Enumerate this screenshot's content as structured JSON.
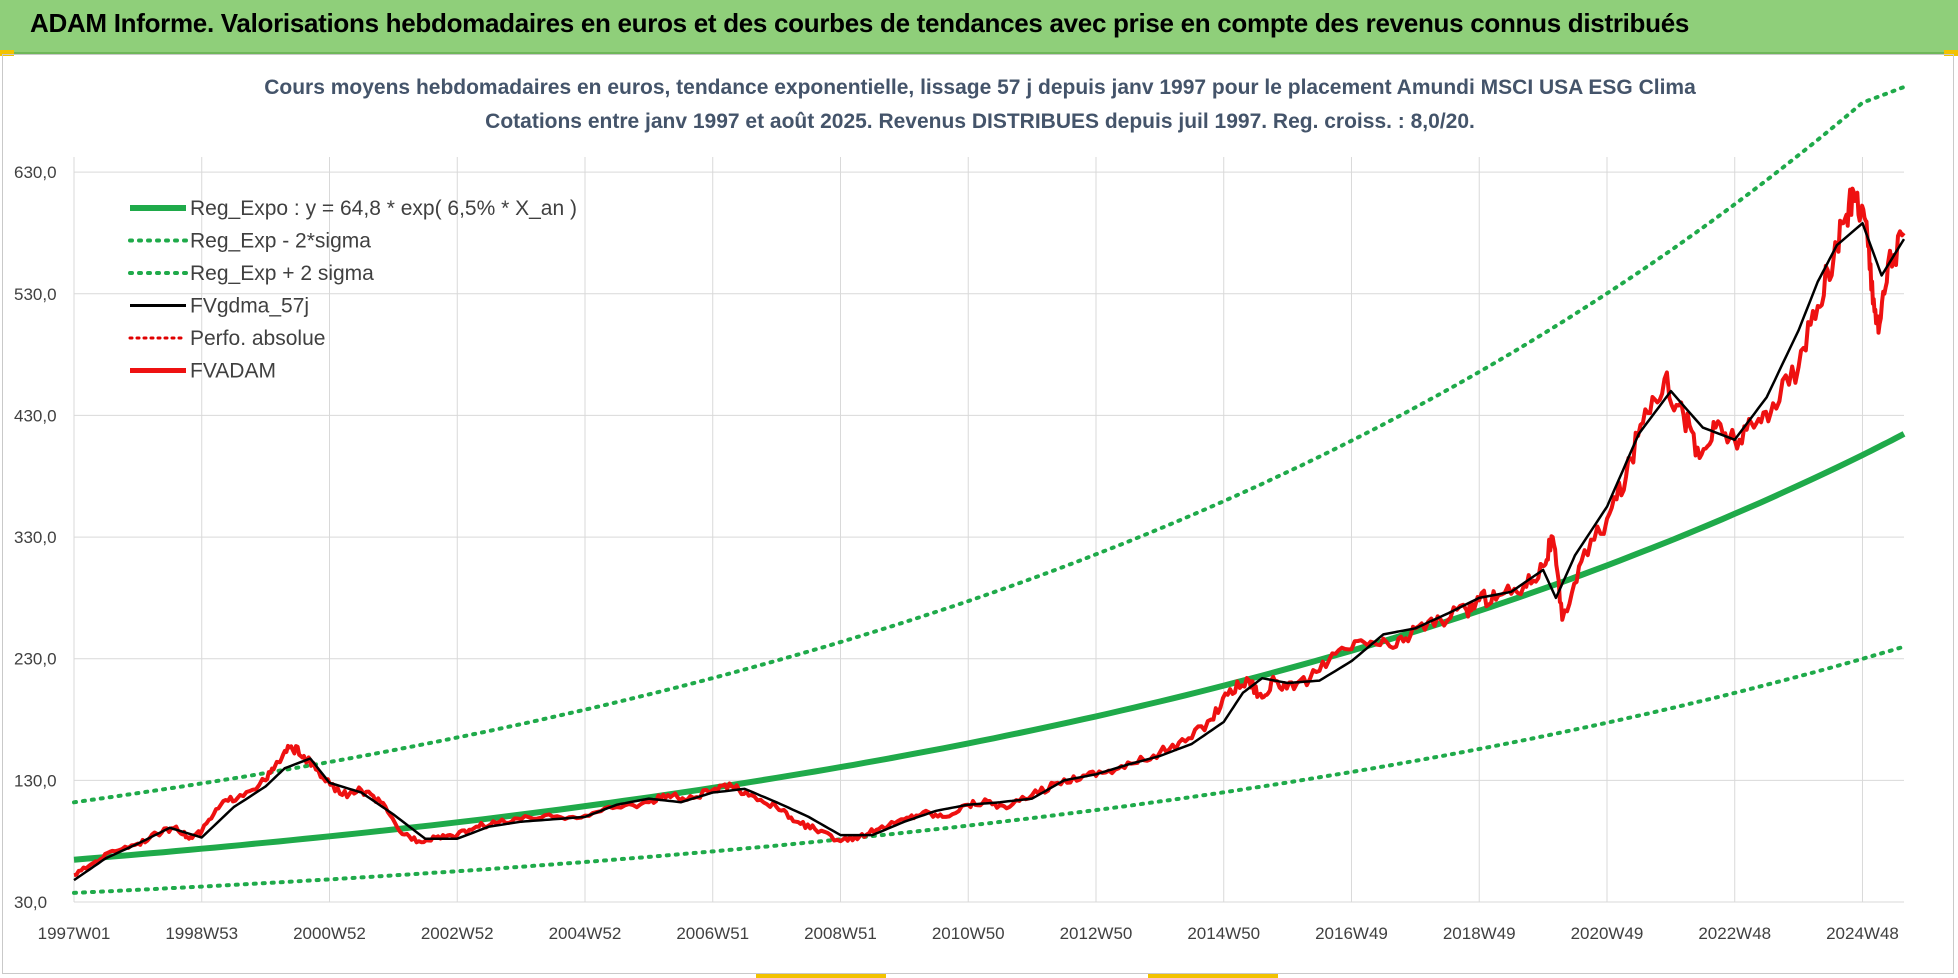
{
  "banner": {
    "title": "ADAM Informe. Valorisations hebdomadaires en euros et des courbes de tendances avec prise en compte des revenus connus distribués"
  },
  "colors": {
    "banner_bg": "#8fcf7a",
    "reg_expo": "#1faa4a",
    "band": "#1faa4a",
    "fvgdma": "#000000",
    "perfo": "#e00000",
    "fvadam": "#ee1111",
    "grid": "#d9d9d9",
    "text": "#404040",
    "title_text": "#44546a"
  },
  "chart_data": {
    "type": "line",
    "title": "Cours moyens hebdomadaires en euros, tendance exponentielle, lissage 57 j depuis janv 1997  pour le placement Amundi MSCI USA ESG Clima",
    "subtitle": "Cotations entre janv 1997 et août 2025. Revenus DISTRIBUES depuis juil 1997. Reg. croiss. : 8,0/20.",
    "xlabel": "",
    "ylabel": "",
    "ylim": [
      30,
      700
    ],
    "xlim": [
      1997.0,
      2025.65
    ],
    "y_ticks": [
      30,
      130,
      230,
      330,
      430,
      530,
      630
    ],
    "y_tick_labels": [
      "30,0",
      "130,0",
      "230,0",
      "330,0",
      "430,0",
      "530,0",
      "630,0"
    ],
    "x_ticks": [
      1997.0,
      1999.0,
      2001.0,
      2003.0,
      2005.0,
      2007.0,
      2009.0,
      2011.0,
      2013.0,
      2015.0,
      2017.0,
      2019.0,
      2021.0,
      2023.0,
      2025.0
    ],
    "x_tick_labels": [
      "1997W01",
      "1998W53",
      "2000W52",
      "2002W52",
      "2004W52",
      "2006W51",
      "2008W51",
      "2010W50",
      "2012W50",
      "2014W50",
      "2016W49",
      "2018W49",
      "2020W49",
      "2022W48",
      "2024W48"
    ],
    "grid": true,
    "legend_position": "top-left",
    "legend": [
      {
        "name": "Reg_Expo : y = 64,8 * exp( 6,5% *  X_an )",
        "style": "solid-thick",
        "color": "#1faa4a"
      },
      {
        "name": "Reg_Exp - 2*sigma",
        "style": "dotted",
        "color": "#1faa4a"
      },
      {
        "name": "Reg_Exp + 2 sigma",
        "style": "dotted",
        "color": "#1faa4a"
      },
      {
        "name": "FVgdma_57j",
        "style": "solid",
        "color": "#000000"
      },
      {
        "name": "Perfo. absolue",
        "style": "dotted",
        "color": "#e00000"
      },
      {
        "name": "FVADAM",
        "style": "solid-thick",
        "color": "#ee1111"
      }
    ],
    "series": [
      {
        "name": "Reg_Expo : y = 64,8 * exp( 6,5% *  X_an )",
        "x": [
          1997.0,
          1999.0,
          2001.0,
          2003.0,
          2005.0,
          2007.0,
          2009.0,
          2011.0,
          2013.0,
          2015.0,
          2017.0,
          2019.0,
          2021.0,
          2023.0,
          2025.0,
          2025.65
        ],
        "y": [
          64.8,
          73.8,
          84.0,
          95.5,
          108.8,
          123.8,
          140.9,
          160.4,
          182.6,
          207.9,
          236.6,
          269.4,
          306.7,
          349.1,
          397.4,
          414.8
        ]
      },
      {
        "name": "Reg_Exp - 2*sigma",
        "x": [
          1997.0,
          1999.0,
          2001.0,
          2003.0,
          2005.0,
          2007.0,
          2009.0,
          2011.0,
          2013.0,
          2015.0,
          2017.0,
          2019.0,
          2021.0,
          2023.0,
          2025.0,
          2025.65
        ],
        "y": [
          37.5,
          42.7,
          48.6,
          55.3,
          62.9,
          71.6,
          81.5,
          92.8,
          105.6,
          120.2,
          136.9,
          155.8,
          177.4,
          201.9,
          229.9,
          239.9
        ]
      },
      {
        "name": "Reg_Exp + 2 sigma",
        "x": [
          1997.0,
          1999.0,
          2001.0,
          2003.0,
          2005.0,
          2007.0,
          2009.0,
          2011.0,
          2013.0,
          2015.0,
          2017.0,
          2019.0,
          2021.0,
          2023.0,
          2025.0,
          2025.65
        ],
        "y": [
          112.0,
          127.5,
          145.1,
          165.2,
          188.1,
          214.1,
          243.7,
          277.4,
          315.8,
          359.5,
          409.2,
          465.8,
          530.3,
          603.6,
          687.1,
          700.0
        ]
      },
      {
        "name": "FVgdma_57j",
        "x": [
          1997.0,
          1997.5,
          1998.0,
          1998.5,
          1999.0,
          1999.5,
          2000.0,
          2000.3,
          2000.7,
          2001.0,
          2001.5,
          2002.0,
          2002.5,
          2003.0,
          2003.5,
          2004.0,
          2004.5,
          2005.0,
          2005.5,
          2006.0,
          2006.5,
          2007.0,
          2007.5,
          2008.0,
          2008.5,
          2009.0,
          2009.5,
          2010.0,
          2010.5,
          2011.0,
          2011.5,
          2012.0,
          2012.5,
          2013.0,
          2013.5,
          2014.0,
          2014.5,
          2015.0,
          2015.3,
          2015.6,
          2016.0,
          2016.5,
          2017.0,
          2017.5,
          2018.0,
          2018.5,
          2019.0,
          2019.5,
          2020.0,
          2020.2,
          2020.5,
          2021.0,
          2021.5,
          2022.0,
          2022.5,
          2023.0,
          2023.5,
          2024.0,
          2024.3,
          2024.6,
          2025.0,
          2025.3,
          2025.65
        ],
        "y": [
          48,
          66,
          78,
          91,
          83,
          108,
          125,
          140,
          148,
          128,
          120,
          102,
          82,
          82,
          92,
          96,
          98,
          100,
          110,
          115,
          112,
          120,
          123,
          112,
          100,
          85,
          85,
          96,
          105,
          110,
          112,
          115,
          130,
          135,
          143,
          150,
          160,
          178,
          202,
          214,
          210,
          212,
          228,
          250,
          255,
          267,
          280,
          285,
          303,
          280,
          315,
          355,
          415,
          450,
          420,
          410,
          445,
          500,
          540,
          570,
          588,
          545,
          575
        ]
      },
      {
        "name": "FVADAM",
        "x": [
          1997.0,
          1997.3,
          1997.6,
          1998.0,
          1998.3,
          1998.6,
          1998.8,
          1999.0,
          1999.3,
          1999.6,
          2000.0,
          2000.2,
          2000.4,
          2000.6,
          2000.9,
          2001.2,
          2001.5,
          2001.8,
          2002.1,
          2002.4,
          2002.7,
          2003.0,
          2003.3,
          2003.6,
          2004.0,
          2004.5,
          2005.0,
          2005.5,
          2006.0,
          2006.3,
          2006.6,
          2007.0,
          2007.3,
          2007.6,
          2008.0,
          2008.3,
          2008.6,
          2009.0,
          2009.3,
          2009.6,
          2010.0,
          2010.3,
          2010.6,
          2011.0,
          2011.3,
          2011.6,
          2012.0,
          2012.4,
          2012.8,
          2013.2,
          2013.6,
          2014.0,
          2014.4,
          2014.8,
          2015.1,
          2015.4,
          2015.6,
          2015.8,
          2016.1,
          2016.5,
          2016.9,
          2017.3,
          2017.7,
          2018.0,
          2018.4,
          2018.8,
          2019.0,
          2019.3,
          2019.7,
          2020.0,
          2020.15,
          2020.3,
          2020.6,
          2021.0,
          2021.3,
          2021.6,
          2021.9,
          2022.2,
          2022.45,
          2022.7,
          2023.0,
          2023.3,
          2023.6,
          2024.0,
          2024.3,
          2024.55,
          2024.75,
          2024.9,
          2025.05,
          2025.15,
          2025.25,
          2025.4,
          2025.65
        ],
        "y": [
          52,
          62,
          72,
          78,
          86,
          92,
          82,
          88,
          110,
          118,
          130,
          145,
          158,
          150,
          132,
          118,
          122,
          112,
          88,
          80,
          84,
          85,
          92,
          95,
          98,
          100,
          101,
          108,
          112,
          118,
          114,
          122,
          125,
          118,
          108,
          96,
          90,
          80,
          84,
          90,
          98,
          104,
          100,
          110,
          113,
          107,
          118,
          128,
          134,
          138,
          144,
          153,
          162,
          180,
          205,
          212,
          198,
          212,
          205,
          220,
          238,
          244,
          240,
          255,
          262,
          270,
          278,
          282,
          290,
          306,
          330,
          262,
          310,
          345,
          380,
          435,
          460,
          430,
          395,
          420,
          410,
          420,
          440,
          470,
          520,
          560,
          595,
          612,
          590,
          540,
          498,
          555,
          580
        ]
      }
    ]
  }
}
